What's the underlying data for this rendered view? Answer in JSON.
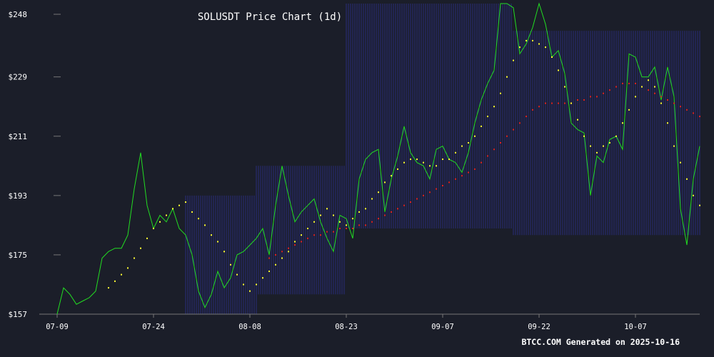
{
  "chart_data": {
    "type": "line",
    "title": "SOLUSDT Price Chart (1d)",
    "footer": "BTCC.COM Generated on 2025-10-16",
    "y_ticks": [
      "$157",
      "$175",
      "$193",
      "$211",
      "$229",
      "$248"
    ],
    "y_tick_values": [
      157,
      175,
      193,
      211,
      229,
      248
    ],
    "ylim": [
      157,
      248
    ],
    "x_ticks": [
      "07-09",
      "07-24",
      "08-08",
      "08-23",
      "09-07",
      "09-22",
      "10-07"
    ],
    "x_tick_days": [
      0,
      15,
      30,
      45,
      60,
      75,
      90
    ],
    "xlim": [
      0,
      100
    ],
    "grid": false,
    "colors": {
      "background": "#1b1e29",
      "price": "#22dd22",
      "sar": "#ffff33",
      "ma": "#dd2222",
      "bands": "#2b2f8a",
      "text": "#ffffff",
      "axis": "#777777"
    },
    "band_segments": [
      {
        "from_day": 20,
        "to_day": 31,
        "upper": 193,
        "lower": 157
      },
      {
        "from_day": 31,
        "to_day": 45,
        "upper": 202,
        "lower": 163
      },
      {
        "from_day": 45,
        "to_day": 71,
        "upper": 252,
        "lower": 183
      },
      {
        "from_day": 71,
        "to_day": 100,
        "upper": 243,
        "lower": 181
      }
    ],
    "series": [
      {
        "style": "line",
        "values": [
          157,
          165,
          163,
          160,
          161,
          162,
          164,
          174,
          176,
          177,
          177,
          181,
          195,
          206,
          190,
          183,
          187,
          185,
          189,
          183,
          181,
          175,
          164,
          159,
          163,
          170,
          165,
          168,
          175,
          176,
          178,
          180,
          183,
          175,
          190,
          202,
          193,
          185,
          188,
          190,
          192,
          185,
          180,
          176,
          187,
          186,
          180,
          198,
          204,
          206,
          207,
          188,
          198,
          205,
          214,
          206,
          203,
          202,
          198,
          207,
          208,
          204,
          203,
          200,
          206,
          215,
          222,
          227,
          231,
          253,
          253,
          250,
          236,
          239,
          244,
          252,
          245,
          235,
          237,
          230,
          215,
          213,
          212,
          193,
          205,
          203,
          210,
          211,
          207,
          236,
          235,
          229,
          229,
          232,
          222,
          232,
          223,
          189,
          178,
          198,
          208
        ]
      },
      {
        "style": "dots",
        "points": [
          [
            8,
            165
          ],
          [
            9,
            167
          ],
          [
            10,
            169
          ],
          [
            11,
            171
          ],
          [
            12,
            174
          ],
          [
            13,
            177
          ],
          [
            14,
            180
          ],
          [
            15,
            183
          ],
          [
            16,
            185
          ],
          [
            17,
            187
          ],
          [
            18,
            189
          ],
          [
            19,
            190
          ],
          [
            20,
            191
          ],
          [
            21,
            188
          ],
          [
            22,
            186
          ],
          [
            23,
            184
          ],
          [
            24,
            181
          ],
          [
            25,
            179
          ],
          [
            26,
            176
          ],
          [
            27,
            172
          ],
          [
            28,
            169
          ],
          [
            29,
            166
          ],
          [
            30,
            164
          ],
          [
            31,
            166
          ],
          [
            32,
            168
          ],
          [
            33,
            170
          ],
          [
            34,
            172
          ],
          [
            35,
            174
          ],
          [
            36,
            176
          ],
          [
            37,
            179
          ],
          [
            38,
            181
          ],
          [
            39,
            183
          ],
          [
            40,
            185
          ],
          [
            41,
            187
          ],
          [
            42,
            189
          ],
          [
            43,
            187
          ],
          [
            44,
            185
          ],
          [
            45,
            184
          ],
          [
            46,
            186
          ],
          [
            47,
            188
          ],
          [
            48,
            189
          ],
          [
            49,
            192
          ],
          [
            50,
            194
          ],
          [
            51,
            197
          ],
          [
            52,
            199
          ],
          [
            53,
            201
          ],
          [
            54,
            203
          ],
          [
            55,
            204
          ],
          [
            56,
            204
          ],
          [
            57,
            203
          ],
          [
            58,
            202
          ],
          [
            59,
            202
          ],
          [
            60,
            204
          ],
          [
            61,
            204
          ],
          [
            62,
            206
          ],
          [
            63,
            208
          ],
          [
            64,
            209
          ],
          [
            65,
            211
          ],
          [
            66,
            214
          ],
          [
            67,
            217
          ],
          [
            68,
            220
          ],
          [
            69,
            224
          ],
          [
            70,
            229
          ],
          [
            71,
            234
          ],
          [
            72,
            238
          ],
          [
            73,
            240
          ],
          [
            74,
            240
          ],
          [
            75,
            239
          ],
          [
            76,
            238
          ],
          [
            77,
            235
          ],
          [
            78,
            231
          ],
          [
            79,
            226
          ],
          [
            80,
            221
          ],
          [
            81,
            216
          ],
          [
            82,
            211
          ],
          [
            83,
            208
          ],
          [
            84,
            206
          ],
          [
            85,
            208
          ],
          [
            86,
            209
          ],
          [
            87,
            211
          ],
          [
            88,
            215
          ],
          [
            89,
            219
          ],
          [
            90,
            223
          ],
          [
            91,
            226
          ],
          [
            92,
            228
          ],
          [
            93,
            226
          ],
          [
            94,
            221
          ],
          [
            95,
            215
          ],
          [
            96,
            208
          ],
          [
            97,
            203
          ],
          [
            98,
            198
          ],
          [
            99,
            193
          ],
          [
            100,
            190
          ]
        ]
      },
      {
        "style": "dots",
        "points": [
          [
            33,
            174
          ],
          [
            34,
            175
          ],
          [
            35,
            176
          ],
          [
            36,
            177
          ],
          [
            37,
            178
          ],
          [
            38,
            179
          ],
          [
            39,
            180
          ],
          [
            40,
            181
          ],
          [
            41,
            181
          ],
          [
            42,
            182
          ],
          [
            43,
            182
          ],
          [
            44,
            183
          ],
          [
            45,
            183
          ],
          [
            46,
            183
          ],
          [
            47,
            184
          ],
          [
            48,
            184
          ],
          [
            49,
            185
          ],
          [
            50,
            186
          ],
          [
            51,
            187
          ],
          [
            52,
            188
          ],
          [
            53,
            189
          ],
          [
            54,
            190
          ],
          [
            55,
            191
          ],
          [
            56,
            192
          ],
          [
            57,
            193
          ],
          [
            58,
            194
          ],
          [
            59,
            195
          ],
          [
            60,
            196
          ],
          [
            61,
            197
          ],
          [
            62,
            198
          ],
          [
            63,
            199
          ],
          [
            64,
            200
          ],
          [
            65,
            201
          ],
          [
            66,
            203
          ],
          [
            67,
            205
          ],
          [
            68,
            207
          ],
          [
            69,
            209
          ],
          [
            70,
            211
          ],
          [
            71,
            213
          ],
          [
            72,
            215
          ],
          [
            73,
            217
          ],
          [
            74,
            219
          ],
          [
            75,
            220
          ],
          [
            76,
            221
          ],
          [
            77,
            221
          ],
          [
            78,
            221
          ],
          [
            79,
            221
          ],
          [
            80,
            221
          ],
          [
            81,
            222
          ],
          [
            82,
            222
          ],
          [
            83,
            223
          ],
          [
            84,
            223
          ],
          [
            85,
            224
          ],
          [
            86,
            225
          ],
          [
            87,
            226
          ],
          [
            88,
            227
          ],
          [
            89,
            227
          ],
          [
            90,
            227
          ],
          [
            91,
            226
          ],
          [
            92,
            225
          ],
          [
            93,
            224
          ],
          [
            94,
            223
          ],
          [
            95,
            222
          ],
          [
            96,
            221
          ],
          [
            97,
            220
          ],
          [
            98,
            219
          ],
          [
            99,
            218
          ],
          [
            100,
            217
          ]
        ]
      }
    ]
  }
}
